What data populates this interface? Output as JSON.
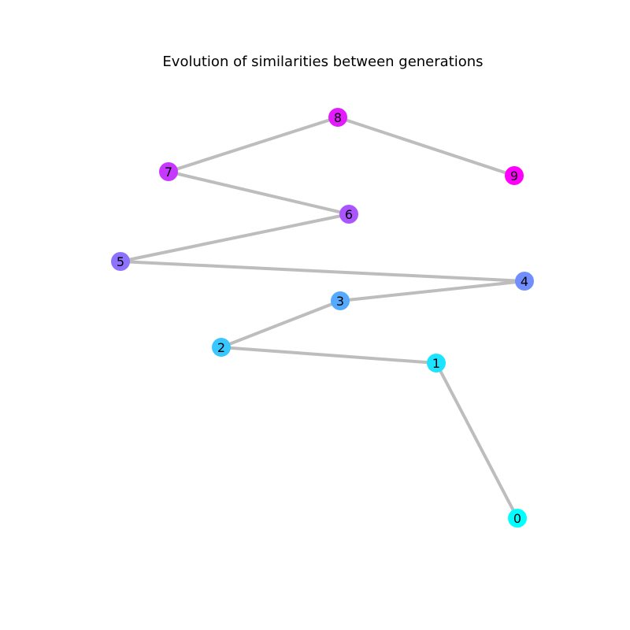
{
  "title": "Evolution of similarities between generations",
  "edge_color": "#bdbdbd",
  "nodes": [
    {
      "id": "0",
      "label": "0",
      "color": "#00ffff"
    },
    {
      "id": "1",
      "label": "1",
      "color": "#1ce3ff"
    },
    {
      "id": "2",
      "label": "2",
      "color": "#38c7ff"
    },
    {
      "id": "3",
      "label": "3",
      "color": "#55aaff"
    },
    {
      "id": "4",
      "label": "4",
      "color": "#718eff"
    },
    {
      "id": "5",
      "label": "5",
      "color": "#8e71ff"
    },
    {
      "id": "6",
      "label": "6",
      "color": "#aa55ff"
    },
    {
      "id": "7",
      "label": "7",
      "color": "#c738ff"
    },
    {
      "id": "8",
      "label": "8",
      "color": "#e31cff"
    },
    {
      "id": "9",
      "label": "9",
      "color": "#ff00ff"
    }
  ],
  "edges": [
    [
      "0",
      "1"
    ],
    [
      "1",
      "2"
    ],
    [
      "2",
      "3"
    ],
    [
      "3",
      "4"
    ],
    [
      "4",
      "5"
    ],
    [
      "5",
      "6"
    ],
    [
      "6",
      "7"
    ],
    [
      "7",
      "8"
    ],
    [
      "8",
      "9"
    ]
  ]
}
